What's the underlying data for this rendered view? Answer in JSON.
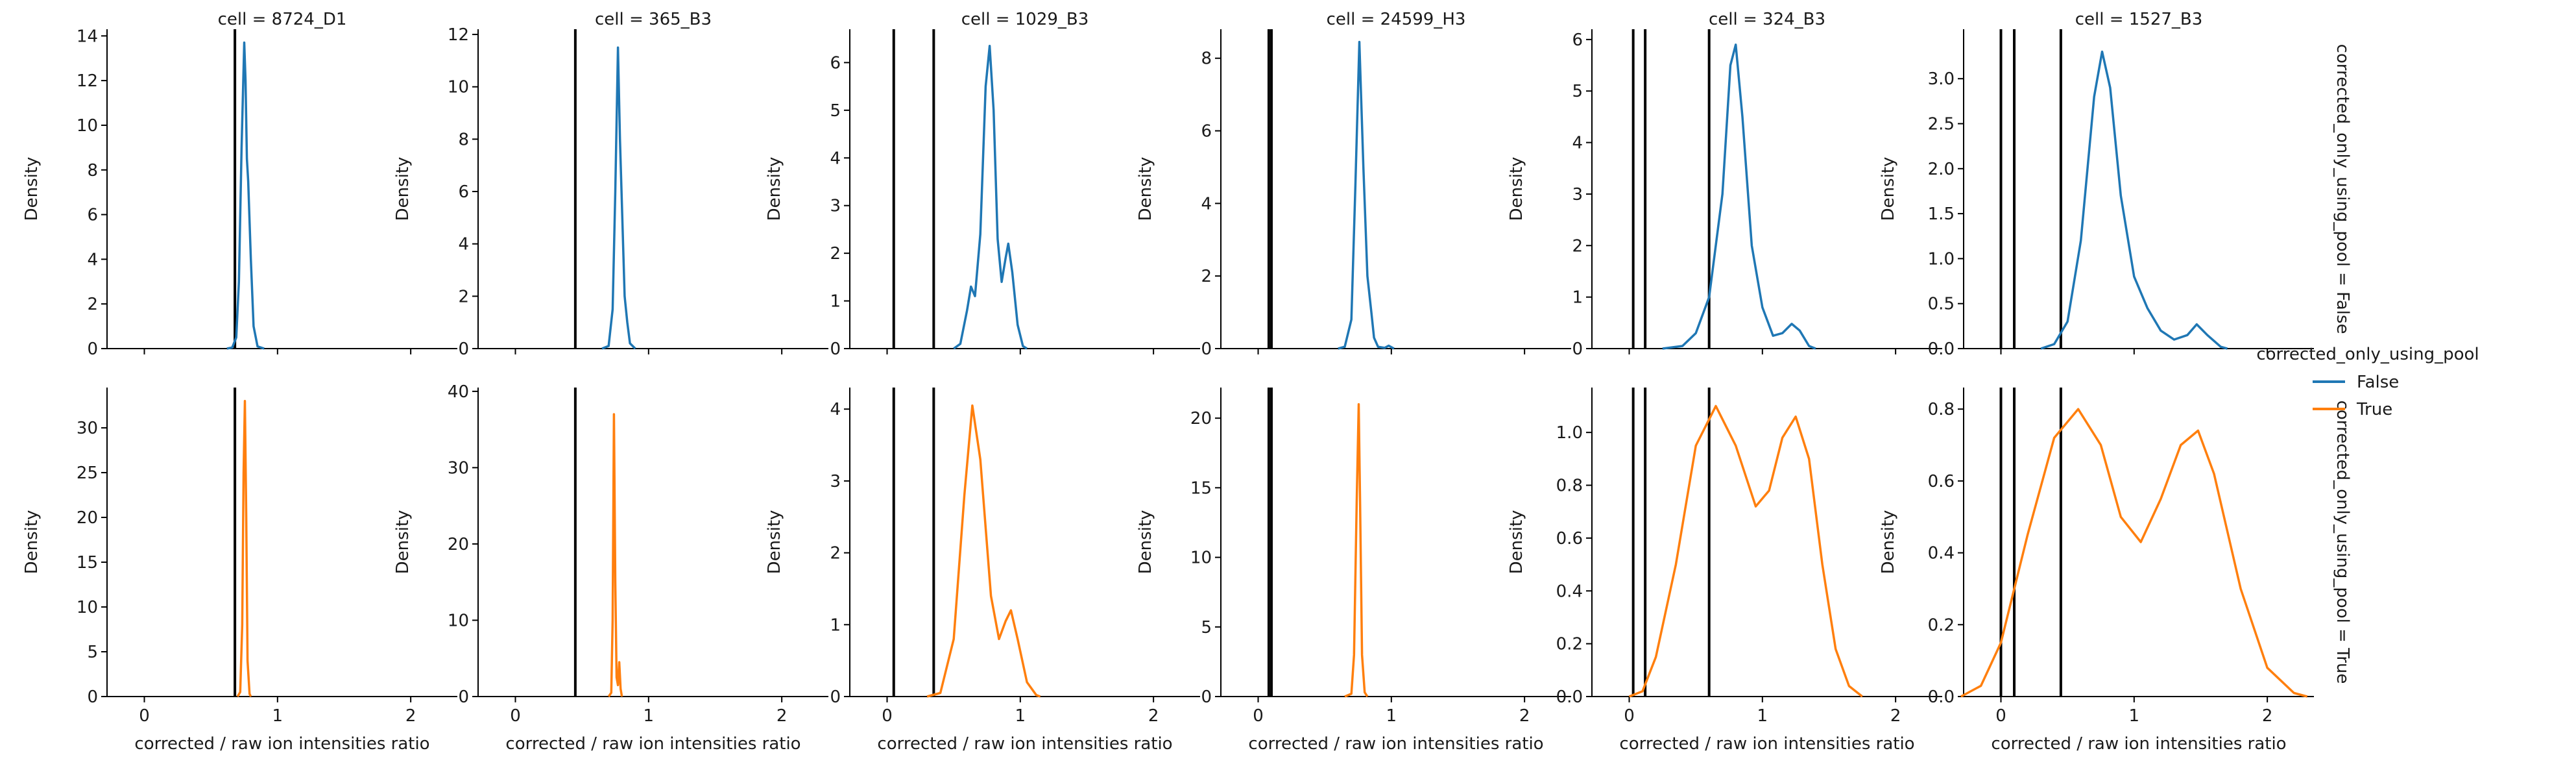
{
  "legend": {
    "title": "corrected_only_using_pool",
    "entries": [
      {
        "label": "False",
        "color": "#1f77b4"
      },
      {
        "label": "True",
        "color": "#ff7f0e"
      }
    ]
  },
  "row_labels": [
    "corrected_only_using_pool = False",
    "corrected_only_using_pool = True"
  ],
  "col_titles": [
    "cell = 8724_D1",
    "cell = 365_B3",
    "cell = 1029_B3",
    "cell = 24599_H3",
    "cell = 324_B3",
    "cell = 1527_B3"
  ],
  "xlabel": "corrected / raw ion intensities ratio",
  "ylabel": "Density",
  "x_ticks": [
    "0",
    "1",
    "2"
  ],
  "chart_data": {
    "type": "line",
    "kind": "kde facet grid",
    "xlabel": "corrected / raw ion intensities ratio",
    "ylabel": "Density",
    "xlim": [
      -0.28,
      2.35
    ],
    "x_ticks": [
      0,
      1,
      2
    ],
    "grid": false,
    "legend_placement": "right",
    "hue": "corrected_only_using_pool",
    "panels": [
      {
        "row": 0,
        "col": 0,
        "series": "False",
        "color": "#1f77b4",
        "ylim": [
          0,
          14.3
        ],
        "y_ticks": [
          0,
          2,
          4,
          6,
          8,
          10,
          12,
          14
        ],
        "vlines": [
          0.68
        ],
        "points": [
          [
            0.62,
            0
          ],
          [
            0.66,
            0.05
          ],
          [
            0.69,
            0.5
          ],
          [
            0.71,
            3
          ],
          [
            0.73,
            9
          ],
          [
            0.75,
            13.7
          ],
          [
            0.76,
            12
          ],
          [
            0.77,
            8.5
          ],
          [
            0.78,
            7.5
          ],
          [
            0.8,
            4
          ],
          [
            0.82,
            1
          ],
          [
            0.85,
            0.1
          ],
          [
            0.9,
            0
          ]
        ]
      },
      {
        "row": 0,
        "col": 1,
        "series": "False",
        "color": "#1f77b4",
        "ylim": [
          0,
          12.2
        ],
        "y_ticks": [
          0,
          2,
          4,
          6,
          8,
          10,
          12
        ],
        "vlines": [
          0.45
        ],
        "points": [
          [
            0.65,
            0
          ],
          [
            0.7,
            0.1
          ],
          [
            0.73,
            1.5
          ],
          [
            0.75,
            6
          ],
          [
            0.77,
            11.5
          ],
          [
            0.785,
            8
          ],
          [
            0.8,
            5.5
          ],
          [
            0.82,
            2
          ],
          [
            0.84,
            1
          ],
          [
            0.86,
            0.2
          ],
          [
            0.9,
            0
          ]
        ]
      },
      {
        "row": 0,
        "col": 2,
        "series": "False",
        "color": "#1f77b4",
        "ylim": [
          0,
          6.7
        ],
        "y_ticks": [
          0,
          1,
          2,
          3,
          4,
          5,
          6
        ],
        "vlines": [
          0.05,
          0.35
        ],
        "points": [
          [
            0.5,
            0
          ],
          [
            0.55,
            0.1
          ],
          [
            0.6,
            0.8
          ],
          [
            0.63,
            1.3
          ],
          [
            0.66,
            1.1
          ],
          [
            0.7,
            2.4
          ],
          [
            0.74,
            5.5
          ],
          [
            0.77,
            6.35
          ],
          [
            0.8,
            5
          ],
          [
            0.83,
            2.3
          ],
          [
            0.86,
            1.4
          ],
          [
            0.89,
            1.9
          ],
          [
            0.91,
            2.2
          ],
          [
            0.94,
            1.6
          ],
          [
            0.98,
            0.5
          ],
          [
            1.02,
            0.05
          ],
          [
            1.05,
            0
          ]
        ]
      },
      {
        "row": 0,
        "col": 3,
        "series": "False",
        "color": "#1f77b4",
        "ylim": [
          0,
          8.8
        ],
        "y_ticks": [
          0,
          2,
          4,
          6,
          8
        ],
        "vlines": [
          0.08,
          0.1
        ],
        "points": [
          [
            0.6,
            0
          ],
          [
            0.65,
            0.05
          ],
          [
            0.7,
            0.8
          ],
          [
            0.73,
            4.5
          ],
          [
            0.76,
            8.45
          ],
          [
            0.79,
            5
          ],
          [
            0.82,
            2
          ],
          [
            0.85,
            1
          ],
          [
            0.87,
            0.3
          ],
          [
            0.9,
            0.05
          ],
          [
            0.95,
            0.02
          ],
          [
            0.98,
            0.08
          ],
          [
            1.02,
            0
          ]
        ]
      },
      {
        "row": 0,
        "col": 4,
        "series": "False",
        "color": "#1f77b4",
        "ylim": [
          0,
          6.2
        ],
        "y_ticks": [
          0,
          1,
          2,
          3,
          4,
          5,
          6
        ],
        "vlines": [
          0.03,
          0.12,
          0.6
        ],
        "points": [
          [
            0.25,
            0
          ],
          [
            0.4,
            0.05
          ],
          [
            0.5,
            0.3
          ],
          [
            0.6,
            1
          ],
          [
            0.7,
            3
          ],
          [
            0.76,
            5.5
          ],
          [
            0.8,
            5.9
          ],
          [
            0.85,
            4.5
          ],
          [
            0.92,
            2
          ],
          [
            1.0,
            0.8
          ],
          [
            1.08,
            0.25
          ],
          [
            1.15,
            0.3
          ],
          [
            1.22,
            0.48
          ],
          [
            1.28,
            0.35
          ],
          [
            1.35,
            0.05
          ],
          [
            1.4,
            0
          ]
        ]
      },
      {
        "row": 0,
        "col": 5,
        "series": "False",
        "color": "#1f77b4",
        "ylim": [
          0,
          3.55
        ],
        "y_ticks": [
          0,
          0.5,
          1.0,
          1.5,
          2.0,
          2.5,
          3.0
        ],
        "vlines": [
          0.0,
          0.1,
          0.45
        ],
        "points": [
          [
            0.3,
            0
          ],
          [
            0.4,
            0.05
          ],
          [
            0.5,
            0.3
          ],
          [
            0.6,
            1.2
          ],
          [
            0.7,
            2.8
          ],
          [
            0.76,
            3.3
          ],
          [
            0.82,
            2.9
          ],
          [
            0.9,
            1.7
          ],
          [
            1.0,
            0.8
          ],
          [
            1.1,
            0.45
          ],
          [
            1.2,
            0.2
          ],
          [
            1.3,
            0.1
          ],
          [
            1.4,
            0.15
          ],
          [
            1.47,
            0.27
          ],
          [
            1.55,
            0.15
          ],
          [
            1.65,
            0.02
          ],
          [
            1.7,
            0
          ]
        ]
      },
      {
        "row": 1,
        "col": 0,
        "series": "True",
        "color": "#ff7f0e",
        "ylim": [
          0,
          34.5
        ],
        "y_ticks": [
          0,
          5,
          10,
          15,
          20,
          25,
          30
        ],
        "vlines": [
          0.68
        ],
        "points": [
          [
            0.7,
            0
          ],
          [
            0.72,
            0.5
          ],
          [
            0.735,
            8
          ],
          [
            0.745,
            25
          ],
          [
            0.755,
            33
          ],
          [
            0.765,
            20
          ],
          [
            0.775,
            4
          ],
          [
            0.79,
            0.3
          ],
          [
            0.8,
            0
          ]
        ]
      },
      {
        "row": 1,
        "col": 1,
        "series": "True",
        "color": "#ff7f0e",
        "ylim": [
          0,
          40.5
        ],
        "y_ticks": [
          0,
          10,
          20,
          30,
          40
        ],
        "vlines": [
          0.45
        ],
        "points": [
          [
            0.7,
            0
          ],
          [
            0.72,
            0.5
          ],
          [
            0.73,
            10
          ],
          [
            0.74,
            37
          ],
          [
            0.75,
            15
          ],
          [
            0.76,
            2.5
          ],
          [
            0.77,
            1.5
          ],
          [
            0.78,
            4.5
          ],
          [
            0.79,
            1
          ],
          [
            0.8,
            0
          ]
        ]
      },
      {
        "row": 1,
        "col": 2,
        "series": "True",
        "color": "#ff7f0e",
        "ylim": [
          0,
          4.3
        ],
        "y_ticks": [
          0,
          1,
          2,
          3,
          4
        ],
        "vlines": [
          0.05,
          0.35
        ],
        "points": [
          [
            0.3,
            0
          ],
          [
            0.4,
            0.05
          ],
          [
            0.5,
            0.8
          ],
          [
            0.58,
            2.8
          ],
          [
            0.64,
            4.05
          ],
          [
            0.7,
            3.3
          ],
          [
            0.78,
            1.4
          ],
          [
            0.84,
            0.8
          ],
          [
            0.89,
            1.05
          ],
          [
            0.93,
            1.2
          ],
          [
            0.98,
            0.8
          ],
          [
            1.05,
            0.2
          ],
          [
            1.12,
            0.02
          ],
          [
            1.15,
            0
          ]
        ]
      },
      {
        "row": 1,
        "col": 3,
        "series": "True",
        "color": "#ff7f0e",
        "ylim": [
          0,
          22.2
        ],
        "y_ticks": [
          0,
          5,
          10,
          15,
          20
        ],
        "vlines": [
          0.08,
          0.1
        ],
        "points": [
          [
            0.65,
            0
          ],
          [
            0.7,
            0.2
          ],
          [
            0.72,
            3
          ],
          [
            0.74,
            14
          ],
          [
            0.755,
            21
          ],
          [
            0.765,
            14
          ],
          [
            0.78,
            3
          ],
          [
            0.8,
            0.3
          ],
          [
            0.82,
            0
          ]
        ]
      },
      {
        "row": 1,
        "col": 4,
        "series": "True",
        "color": "#ff7f0e",
        "ylim": [
          0,
          1.17
        ],
        "y_ticks": [
          0,
          0.2,
          0.4,
          0.6,
          0.8,
          1.0
        ],
        "vlines": [
          0.03,
          0.12,
          0.6
        ],
        "points": [
          [
            0.0,
            0
          ],
          [
            0.1,
            0.02
          ],
          [
            0.2,
            0.15
          ],
          [
            0.35,
            0.5
          ],
          [
            0.5,
            0.95
          ],
          [
            0.65,
            1.1
          ],
          [
            0.8,
            0.95
          ],
          [
            0.95,
            0.72
          ],
          [
            1.05,
            0.78
          ],
          [
            1.15,
            0.98
          ],
          [
            1.25,
            1.06
          ],
          [
            1.35,
            0.9
          ],
          [
            1.45,
            0.5
          ],
          [
            1.55,
            0.18
          ],
          [
            1.65,
            0.04
          ],
          [
            1.75,
            0
          ]
        ]
      },
      {
        "row": 1,
        "col": 5,
        "series": "True",
        "color": "#ff7f0e",
        "ylim": [
          0,
          0.86
        ],
        "y_ticks": [
          0,
          0.2,
          0.4,
          0.6,
          0.8
        ],
        "vlines": [
          0.0,
          0.1,
          0.45
        ],
        "points": [
          [
            -0.3,
            0
          ],
          [
            -0.15,
            0.03
          ],
          [
            0.0,
            0.15
          ],
          [
            0.2,
            0.45
          ],
          [
            0.4,
            0.72
          ],
          [
            0.58,
            0.8
          ],
          [
            0.75,
            0.7
          ],
          [
            0.9,
            0.5
          ],
          [
            1.05,
            0.43
          ],
          [
            1.2,
            0.55
          ],
          [
            1.35,
            0.7
          ],
          [
            1.48,
            0.74
          ],
          [
            1.6,
            0.62
          ],
          [
            1.8,
            0.3
          ],
          [
            2.0,
            0.08
          ],
          [
            2.2,
            0.01
          ],
          [
            2.3,
            0
          ]
        ]
      }
    ]
  }
}
